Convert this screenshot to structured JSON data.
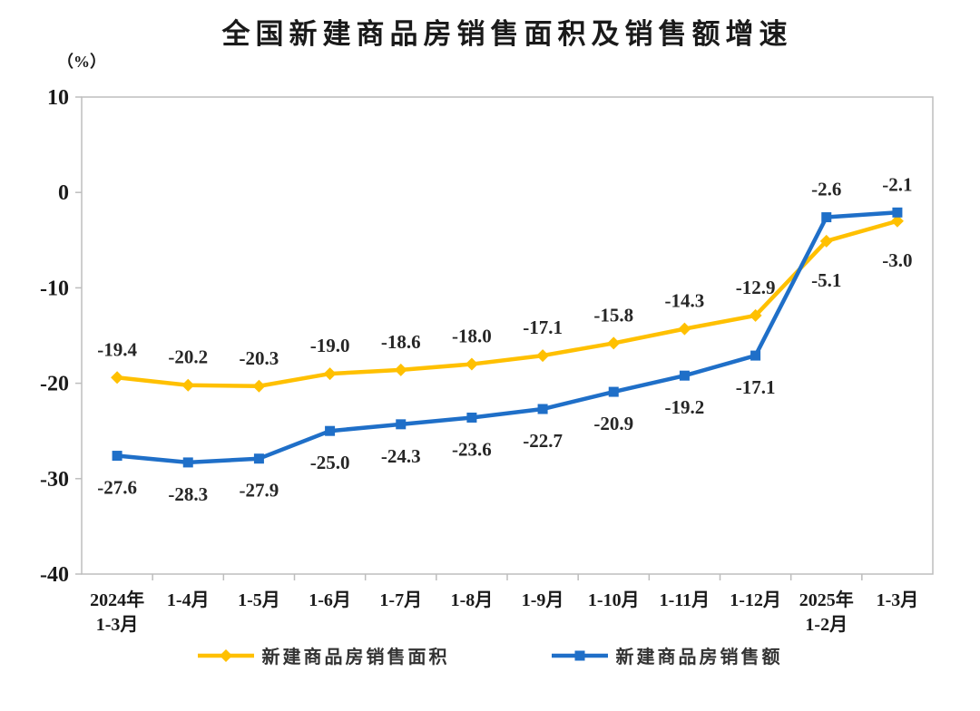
{
  "page": {
    "background": "#ffffff"
  },
  "chart_data": {
    "type": "line",
    "title": "全国新建商品房销售面积及销售额增速",
    "unit_label": "（%）",
    "categories": [
      "2024年\n1-3月",
      "1-4月",
      "1-5月",
      "1-6月",
      "1-7月",
      "1-8月",
      "1-9月",
      "1-10月",
      "1-11月",
      "1-12月",
      "2025年\n1-2月",
      "1-3月"
    ],
    "ylim": [
      -40,
      10
    ],
    "yticks": [
      10,
      0,
      -10,
      -20,
      -30,
      -40
    ],
    "grid": false,
    "legend_position": "bottom",
    "axis_color": "#bdbdbd",
    "label_color": "#262626",
    "tick_label_color": "#1a1a1a",
    "series": [
      {
        "name": "新建商品房销售面积",
        "color": "#FFC000",
        "marker": "diamond",
        "values": [
          -19.4,
          -20.2,
          -20.3,
          -19.0,
          -18.6,
          -18.0,
          -17.1,
          -15.8,
          -14.3,
          -12.9,
          -5.1,
          -3.0
        ],
        "label_positions": [
          "above",
          "above",
          "above",
          "above",
          "above",
          "above",
          "above",
          "above",
          "above",
          "above",
          "below-far",
          "below-far"
        ]
      },
      {
        "name": "新建商品房销售额",
        "color": "#1F6FC8",
        "marker": "square",
        "values": [
          -27.6,
          -28.3,
          -27.9,
          -25.0,
          -24.3,
          -23.6,
          -22.7,
          -20.9,
          -19.2,
          -17.1,
          -2.6,
          -2.1
        ],
        "label_positions": [
          "below",
          "below",
          "below",
          "below",
          "below",
          "below",
          "below",
          "below",
          "below",
          "below",
          "above",
          "above"
        ]
      }
    ]
  }
}
